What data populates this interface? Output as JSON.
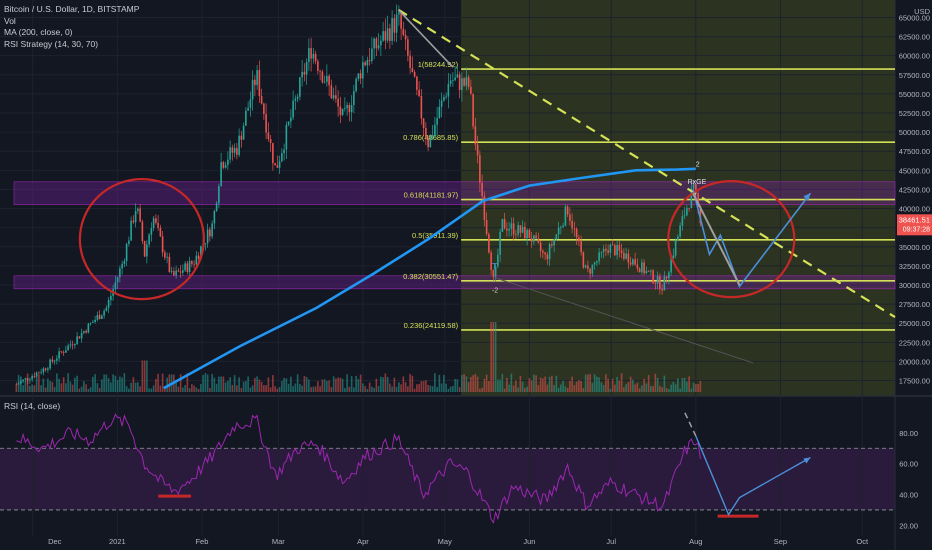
{
  "legend": {
    "symbol_line": "Bitcoin / U.S. Dollar, 1D, BITSTAMP",
    "vol": "Vol",
    "ma": "MA (200, close, 0)",
    "rsi_strategy": "RSI Strategy (14, 30, 70)",
    "rsi_pane": "RSI (14, close)"
  },
  "colors": {
    "background": "#131722",
    "up": "#26a69a",
    "down": "#ef5350",
    "ma": "#2196f3",
    "fib": "#d4e157",
    "zone": "#7b1fa2",
    "rsi": "#9c27b0",
    "ellipse": "#c62828",
    "arrow": "#4a90d9",
    "future_bg": "#2c3421"
  },
  "chart_data": [
    {
      "type": "candlestick",
      "title": "Bitcoin / U.S. Dollar, 1D, BITSTAMP",
      "unit": "USD",
      "ylim": [
        16000,
        66500
      ],
      "y_ticks": [
        17500,
        20000,
        22500,
        25000,
        27500,
        30000,
        32500,
        35000,
        37500,
        40000,
        42500,
        45000,
        47500,
        50000,
        52500,
        55000,
        57500,
        60000,
        62500,
        65000
      ],
      "x_labels": [
        "Dec",
        "2021",
        "Feb",
        "Mar",
        "Apr",
        "May",
        "Jun",
        "Jul",
        "Aug",
        "Sep",
        "Oct"
      ],
      "last_price": "38461.51",
      "countdown": "09:37:28",
      "ma_200_path": [
        [
          "2021-01-18",
          16500
        ],
        [
          "2021-02-15",
          22000
        ],
        [
          "2021-03-15",
          27000
        ],
        [
          "2021-04-05",
          31500
        ],
        [
          "2021-04-25",
          36000
        ],
        [
          "2021-05-15",
          41000
        ],
        [
          "2021-06-01",
          43000
        ],
        [
          "2021-06-20",
          44000
        ],
        [
          "2021-07-10",
          45000
        ],
        [
          "2021-07-25",
          45100
        ],
        [
          "2021-08-01",
          45200
        ]
      ],
      "price_path": [
        [
          "2020-11-25",
          17000
        ],
        [
          "2020-12-05",
          19000
        ],
        [
          "2020-12-17",
          23000
        ],
        [
          "2020-12-28",
          27000
        ],
        [
          "2021-01-03",
          33000
        ],
        [
          "2021-01-08",
          40500
        ],
        [
          "2021-01-11",
          34000
        ],
        [
          "2021-01-14",
          39000
        ],
        [
          "2021-01-21",
          31000
        ],
        [
          "2021-01-29",
          33000
        ],
        [
          "2021-02-05",
          38000
        ],
        [
          "2021-02-08",
          46000
        ],
        [
          "2021-02-14",
          48000
        ],
        [
          "2021-02-21",
          57500
        ],
        [
          "2021-02-28",
          45000
        ],
        [
          "2021-03-13",
          61000
        ],
        [
          "2021-03-25",
          51500
        ],
        [
          "2021-04-01",
          59000
        ],
        [
          "2021-04-14",
          64800
        ],
        [
          "2021-04-25",
          48500
        ],
        [
          "2021-05-03",
          57000
        ],
        [
          "2021-05-10",
          56000
        ],
        [
          "2021-05-12",
          49000
        ],
        [
          "2021-05-19",
          30000
        ],
        [
          "2021-05-22",
          38000
        ],
        [
          "2021-06-01",
          36500
        ],
        [
          "2021-06-07",
          33500
        ],
        [
          "2021-06-15",
          40000
        ],
        [
          "2021-06-22",
          31500
        ],
        [
          "2021-06-30",
          35000
        ],
        [
          "2021-07-08",
          33500
        ],
        [
          "2021-07-20",
          29800
        ],
        [
          "2021-07-28",
          39500
        ],
        [
          "2021-07-31",
          42500
        ],
        [
          "2021-08-03",
          38461
        ]
      ],
      "volume_spikes": [
        [
          "2021-01-11",
          0.45
        ],
        [
          "2021-01-21",
          0.25
        ],
        [
          "2021-02-08",
          0.22
        ],
        [
          "2021-05-19",
          1.0
        ],
        [
          "2021-06-22",
          0.25
        ],
        [
          "2021-07-28",
          0.15
        ]
      ],
      "fib_levels": [
        {
          "label": "1(58244.92)",
          "price": 58244.92
        },
        {
          "label": "0.786(48685.85)",
          "price": 48685.85
        },
        {
          "label": "0.618(41181.97)",
          "price": 41181.97
        },
        {
          "label": "0.5(35911.39)",
          "price": 35911.39
        },
        {
          "label": "0.382(30551.47)",
          "price": 30551.47
        },
        {
          "label": "0.236(24119.58)",
          "price": 24119.58
        }
      ],
      "zones": [
        {
          "from": 40500,
          "to": 43500
        },
        {
          "from": 29500,
          "to": 31200
        }
      ],
      "annotations": [
        "T",
        "-2",
        "RxGE",
        "2"
      ]
    },
    {
      "type": "line",
      "title": "RSI (14, close)",
      "ylim": [
        17,
        100
      ],
      "y_ticks": [
        20,
        40,
        60,
        80
      ],
      "y_tick_labels": [
        "20.00",
        "40.00",
        "60.00",
        "80.00"
      ],
      "upper_band": 70,
      "lower_band": 30,
      "series": [
        {
          "values": [
            [
              "2020-11-25",
              77
            ],
            [
              "2020-12-05",
              70
            ],
            [
              "2020-12-15",
              80
            ],
            [
              "2020-12-22",
              75
            ],
            [
              "2020-12-30",
              89
            ],
            [
              "2021-01-05",
              86
            ],
            [
              "2021-01-11",
              60
            ],
            [
              "2021-01-17",
              48
            ],
            [
              "2021-01-22",
              42
            ],
            [
              "2021-01-28",
              50
            ],
            [
              "2021-02-05",
              65
            ],
            [
              "2021-02-13",
              85
            ],
            [
              "2021-02-21",
              88
            ],
            [
              "2021-02-28",
              52
            ],
            [
              "2021-03-08",
              70
            ],
            [
              "2021-03-15",
              73
            ],
            [
              "2021-03-25",
              48
            ],
            [
              "2021-04-02",
              65
            ],
            [
              "2021-04-14",
              76
            ],
            [
              "2021-04-23",
              40
            ],
            [
              "2021-05-03",
              60
            ],
            [
              "2021-05-09",
              55
            ],
            [
              "2021-05-19",
              24
            ],
            [
              "2021-05-26",
              45
            ],
            [
              "2021-06-07",
              36
            ],
            [
              "2021-06-15",
              58
            ],
            [
              "2021-06-22",
              33
            ],
            [
              "2021-07-01",
              48
            ],
            [
              "2021-07-10",
              40
            ],
            [
              "2021-07-20",
              32
            ],
            [
              "2021-07-28",
              68
            ],
            [
              "2021-08-01",
              76
            ],
            [
              "2021-08-03",
              62
            ]
          ]
        }
      ]
    }
  ]
}
